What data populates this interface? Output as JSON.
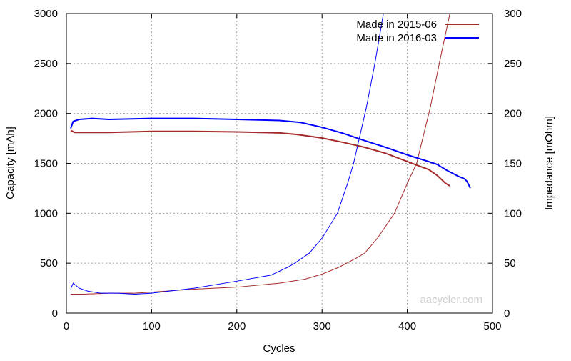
{
  "chart_data": {
    "type": "line",
    "xlabel": "Cycles",
    "ylabel": "Capacity [mAh]",
    "y2label": "Impedance [mOhm]",
    "xlim": [
      0,
      500
    ],
    "ylim": [
      0,
      3000
    ],
    "y2lim": [
      0,
      300
    ],
    "xticks": [
      "0",
      "100",
      "200",
      "300",
      "400",
      "500"
    ],
    "yticks": [
      "0",
      "500",
      "1000",
      "1500",
      "2000",
      "2500",
      "3000"
    ],
    "y2ticks": [
      "0",
      "50",
      "100",
      "150",
      "200",
      "250",
      "300"
    ],
    "grid": true,
    "legend_position": "top-right",
    "watermark": "aacycler.com",
    "series": [
      {
        "name": "Made in 2015-06",
        "color": "#a52a2a",
        "capacity": {
          "x": [
            5,
            10,
            50,
            100,
            150,
            200,
            250,
            270,
            300,
            325,
            350,
            375,
            400,
            415,
            425,
            435,
            445,
            450
          ],
          "y": [
            1830,
            1810,
            1810,
            1820,
            1820,
            1815,
            1805,
            1790,
            1754,
            1710,
            1661,
            1600,
            1518,
            1470,
            1439,
            1380,
            1300,
            1274
          ]
        },
        "impedance": {
          "x": [
            5,
            20,
            50,
            80,
            100,
            150,
            200,
            250,
            280,
            300,
            320,
            340,
            350,
            365,
            385,
            400,
            411,
            427,
            440,
            450
          ],
          "y": [
            19,
            19,
            20,
            20,
            21,
            24,
            26,
            30,
            34,
            39,
            46,
            55,
            60,
            75,
            100,
            130,
            150,
            206,
            260,
            300
          ]
        }
      },
      {
        "name": "Made in 2016-03",
        "color": "#0000ff",
        "capacity": {
          "x": [
            5,
            8,
            15,
            30,
            50,
            100,
            150,
            200,
            250,
            275,
            300,
            325,
            350,
            375,
            400,
            425,
            435,
            446,
            460,
            467,
            470,
            474
          ],
          "y": [
            1850,
            1920,
            1940,
            1950,
            1940,
            1950,
            1950,
            1940,
            1930,
            1910,
            1861,
            1800,
            1728,
            1660,
            1585,
            1518,
            1490,
            1432,
            1370,
            1346,
            1320,
            1253
          ]
        },
        "impedance": {
          "x": [
            5,
            8,
            15,
            25,
            40,
            60,
            80,
            100,
            150,
            200,
            240,
            260,
            268,
            285,
            300,
            318,
            330,
            337,
            352,
            362,
            372
          ],
          "y": [
            24,
            30,
            25,
            22,
            20,
            20,
            19,
            20,
            25,
            32,
            38,
            46,
            50,
            60,
            75,
            100,
            130,
            150,
            206,
            250,
            300
          ]
        }
      }
    ]
  }
}
